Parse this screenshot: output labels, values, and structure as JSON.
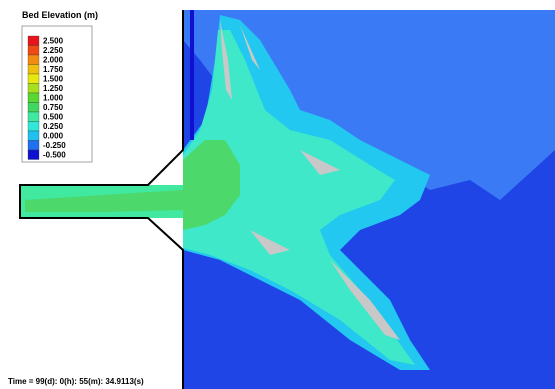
{
  "legend": {
    "title": "Bed Elevation (m)",
    "entries": [
      {
        "label": "2.500",
        "color": "#e8141c"
      },
      {
        "label": "2.250",
        "color": "#f04a14"
      },
      {
        "label": "2.000",
        "color": "#f08c10"
      },
      {
        "label": "1.750",
        "color": "#f0c010"
      },
      {
        "label": "1.500",
        "color": "#e8e810"
      },
      {
        "label": "1.250",
        "color": "#a8e020"
      },
      {
        "label": "1.000",
        "color": "#58d830"
      },
      {
        "label": "0.750",
        "color": "#40d860"
      },
      {
        "label": "0.500",
        "color": "#40e8a0"
      },
      {
        "label": "0.250",
        "color": "#30e8d8"
      },
      {
        "label": "0.000",
        "color": "#20c0f0"
      },
      {
        "label": "-0.250",
        "color": "#2070f0"
      },
      {
        "label": "-0.500",
        "color": "#1010d0"
      }
    ]
  },
  "footer": {
    "time": "Time = 99(d): 0(h): 55(m): 34.9113(s)"
  }
}
